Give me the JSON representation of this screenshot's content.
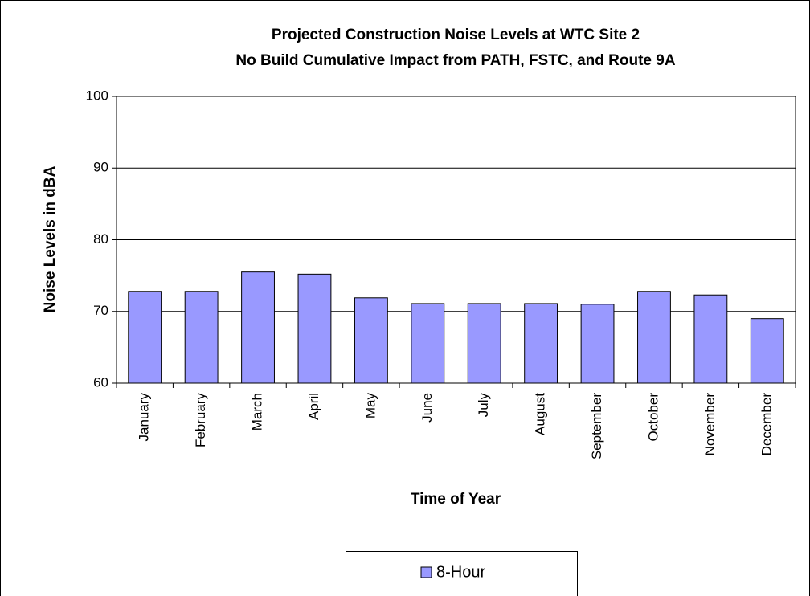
{
  "chart_data": {
    "type": "bar",
    "title": [
      "Projected Construction Noise Levels at WTC Site 2",
      "No Build Cumulative Impact from PATH, FSTC, and Route 9A"
    ],
    "x_label": "Time of Year",
    "y_label": "Noise Levels in dBA",
    "categories": [
      "January",
      "February",
      "March",
      "April",
      "May",
      "June",
      "July",
      "August",
      "September",
      "October",
      "November",
      "December"
    ],
    "series": [
      {
        "name": "8-Hour",
        "color": "#9999ff",
        "values": [
          72.8,
          72.8,
          75.5,
          75.2,
          71.9,
          71.1,
          71.1,
          71.1,
          71.0,
          72.8,
          72.3,
          69.0
        ]
      }
    ],
    "ylim": [
      60,
      100
    ],
    "yticks": [
      60,
      70,
      80,
      90,
      100
    ],
    "grid": true,
    "legend": "bottom"
  }
}
